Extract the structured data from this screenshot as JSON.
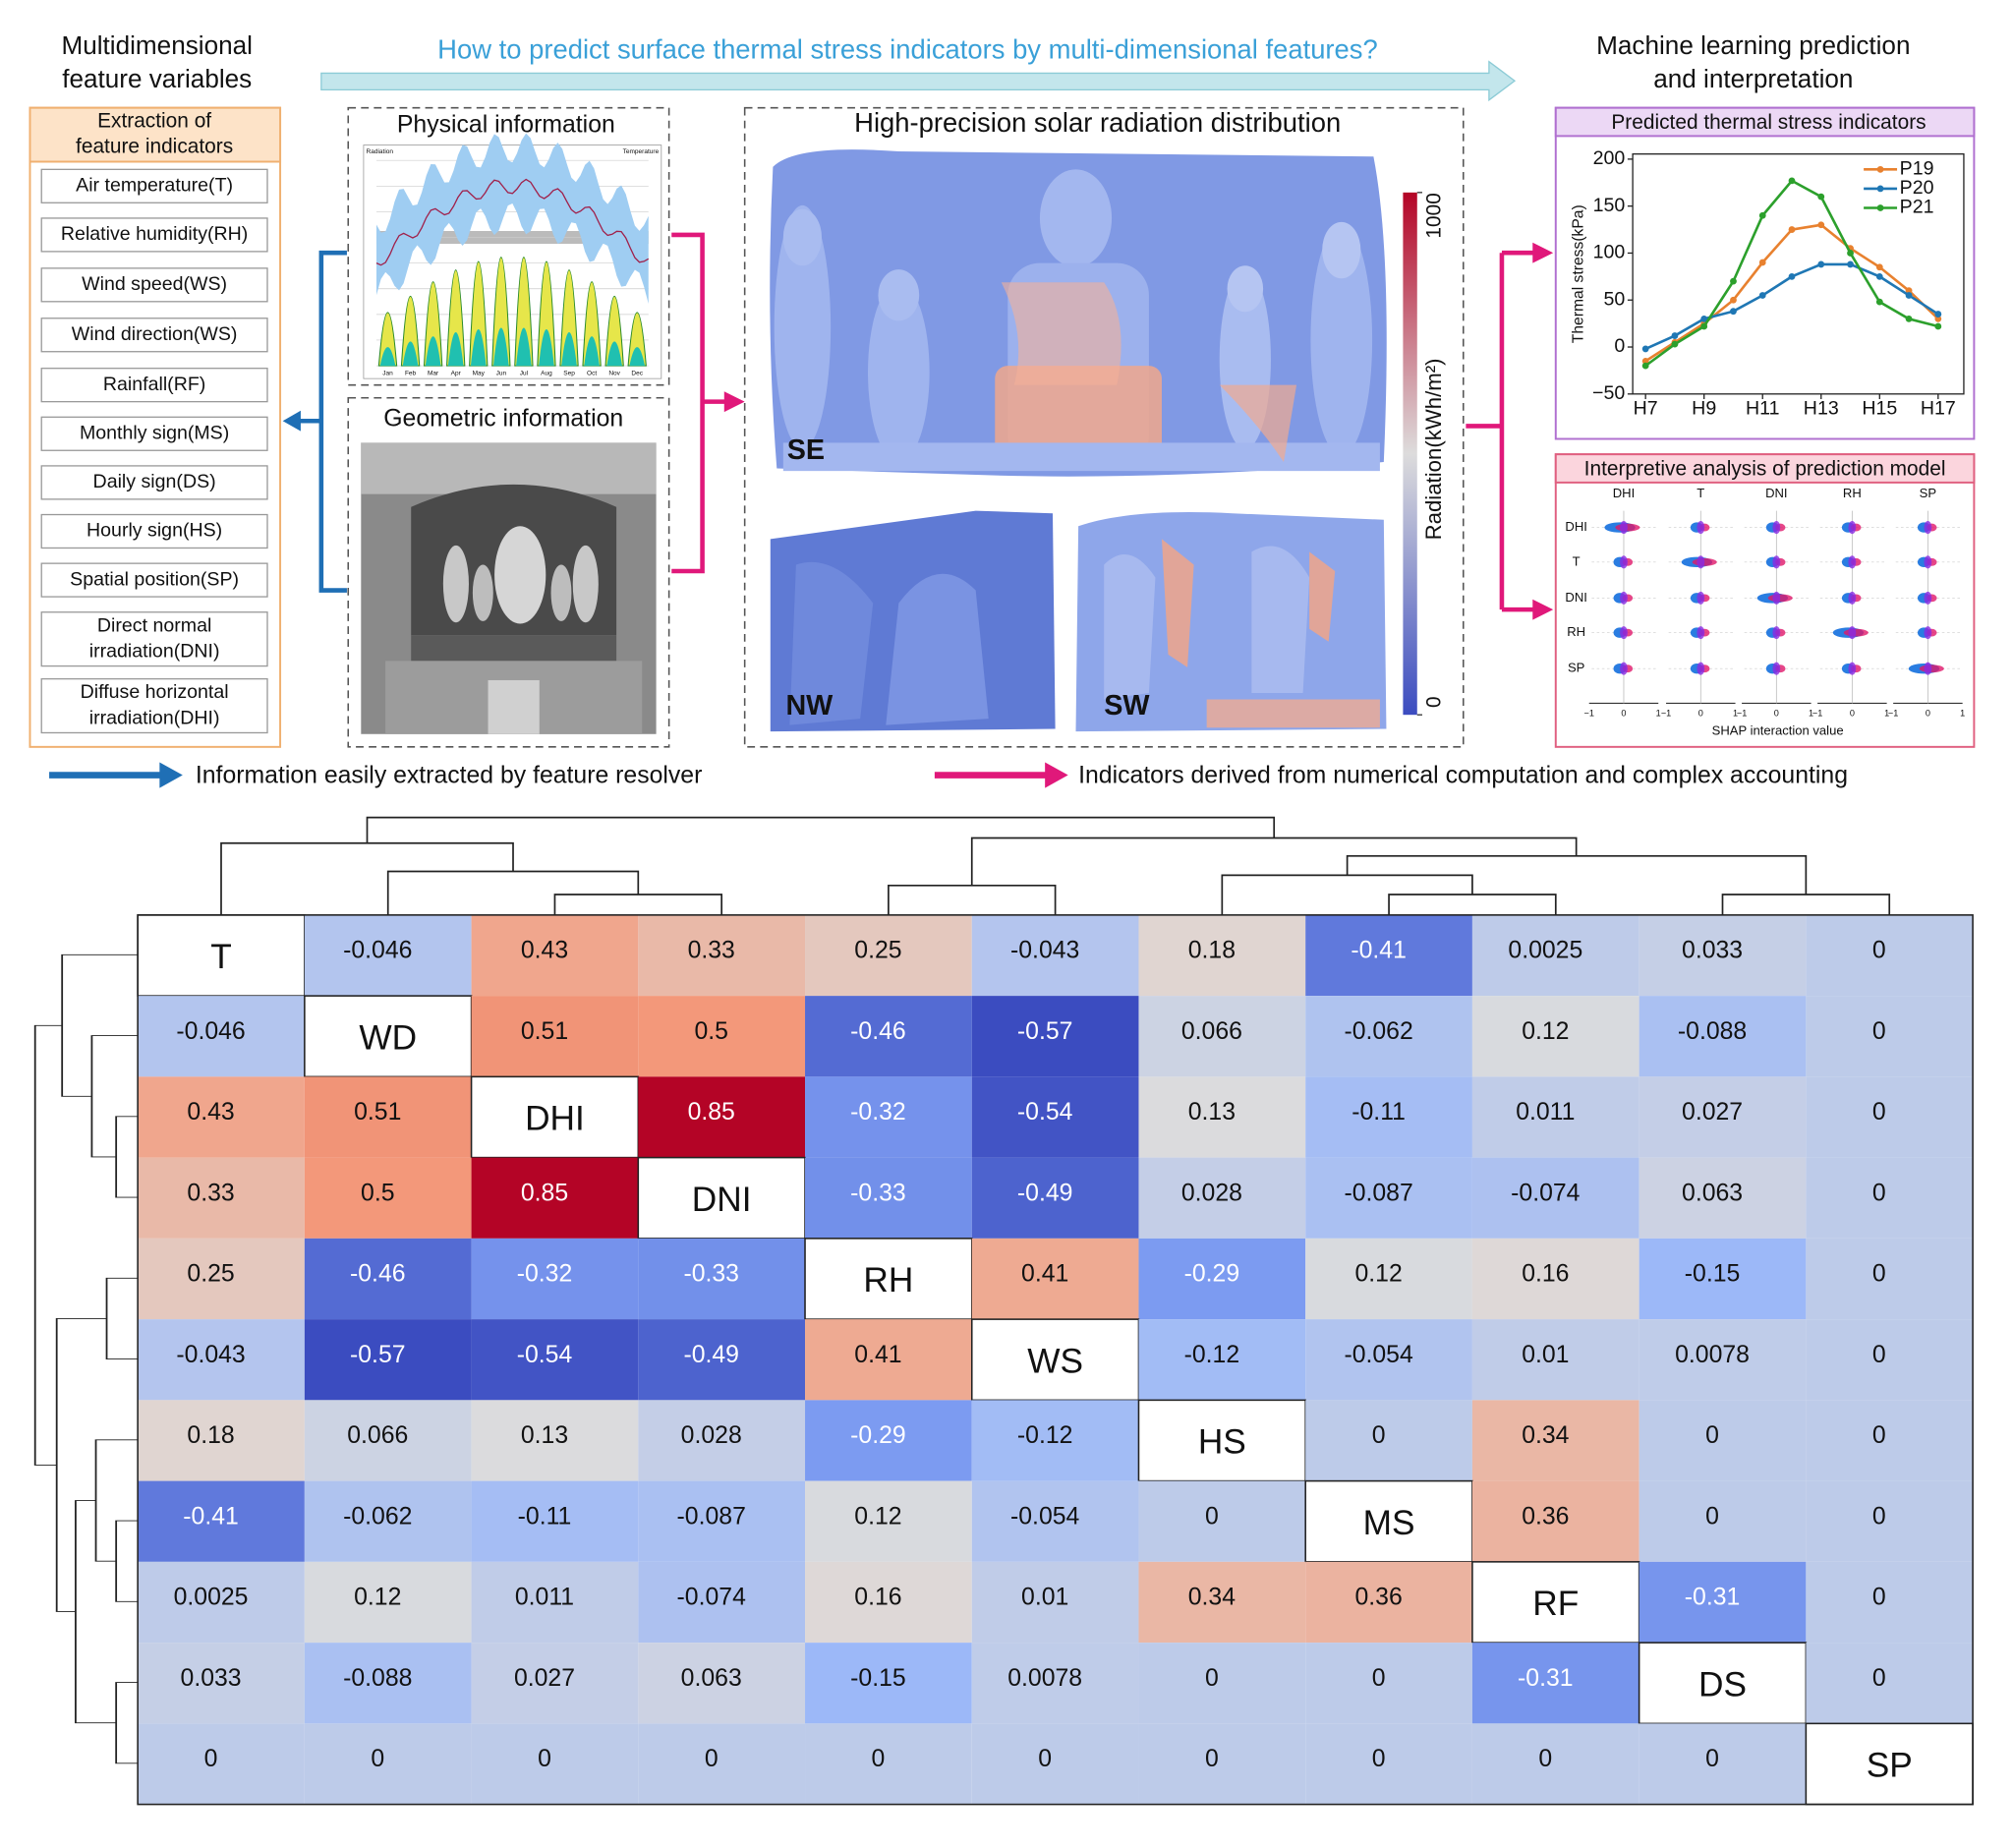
{
  "header": {
    "left_title": [
      "Multidimensional",
      "feature variables"
    ],
    "question": "How to predict surface thermal stress indicators by multi-dimensional features?",
    "right_title": [
      "Machine learning prediction",
      "and interpretation"
    ]
  },
  "features": {
    "title": [
      "Extraction of",
      "feature indicators"
    ],
    "items": [
      [
        "Air temperature(T)"
      ],
      [
        "Relative humidity(RH)"
      ],
      [
        "Wind speed(WS)"
      ],
      [
        "Wind direction(WS)"
      ],
      [
        "Rainfall(RF)"
      ],
      [
        "Monthly sign(MS)"
      ],
      [
        "Daily sign(DS)"
      ],
      [
        "Hourly sign(HS)"
      ],
      [
        "Spatial position(SP)"
      ],
      [
        "Direct normal",
        "irradiation(DNI)"
      ],
      [
        "Diffuse horizontal",
        "irradiation(DHI)"
      ]
    ]
  },
  "physical": {
    "title": "Physical information",
    "left_label": "Radiation",
    "right_label": "Temperature",
    "months": [
      "Jan",
      "Feb",
      "Mar",
      "Apr",
      "May",
      "Jun",
      "Jul",
      "Aug",
      "Sep",
      "Oct",
      "Nov",
      "Dec"
    ]
  },
  "geometric": {
    "title": "Geometric information"
  },
  "solar": {
    "title": "High-precision solar radiation distribution",
    "colorbar_label": "Radiation(kWh/m²)",
    "clim": [
      0,
      1000
    ],
    "ticks": [
      0,
      1000
    ],
    "views": [
      "SE",
      "NW",
      "SW"
    ]
  },
  "prediction": {
    "title": "Predicted thermal stress indicators"
  },
  "interpretation": {
    "title": "Interpretive analysis of prediction model",
    "features": [
      "DHI",
      "T",
      "DNI",
      "RH",
      "SP"
    ],
    "ticks": [
      "−1",
      "0",
      "1"
    ],
    "xlabel": "SHAP interaction value"
  },
  "legend": {
    "blue": "Information easily extracted by feature resolver",
    "pink": "Indicators derived from numerical computation and complex accounting"
  },
  "chart_data": [
    {
      "type": "line",
      "ylabel": "Thermal stress(kPa)",
      "categories": [
        "H7",
        null,
        "H9",
        null,
        "H11",
        null,
        "H13",
        null,
        "H15",
        null,
        "H17"
      ],
      "ylim": [
        -50,
        200
      ],
      "yticks": [
        {
          "value": -50,
          "label": "−50"
        },
        0,
        50,
        100,
        150,
        200
      ],
      "legend": "upper right",
      "series": [
        {
          "name": "P19",
          "color": "#e8812f",
          "values": [
            -15,
            5,
            25,
            50,
            90,
            125,
            130,
            105,
            85,
            60,
            30
          ]
        },
        {
          "name": "P20",
          "color": "#1f77b4",
          "values": [
            -2,
            12,
            30,
            38,
            55,
            75,
            88,
            88,
            75,
            55,
            35
          ]
        },
        {
          "name": "P21",
          "color": "#2ca02c",
          "values": [
            -20,
            3,
            22,
            70,
            140,
            177,
            160,
            100,
            48,
            30,
            22
          ]
        }
      ]
    },
    {
      "type": "heatmap",
      "categories": [
        "T",
        "WD",
        "DHI",
        "DNI",
        "RH",
        "WS",
        "HS",
        "MS",
        "RF",
        "DS",
        "SP"
      ],
      "values": [
        [
          null,
          -0.046,
          0.43,
          0.33,
          0.25,
          -0.043,
          0.18,
          -0.41,
          0.0025,
          0.033,
          0
        ],
        [
          -0.046,
          null,
          0.51,
          0.5,
          -0.46,
          -0.57,
          0.066,
          -0.062,
          0.12,
          -0.088,
          0
        ],
        [
          0.43,
          0.51,
          null,
          0.85,
          -0.32,
          -0.54,
          0.13,
          -0.11,
          0.011,
          0.027,
          0
        ],
        [
          0.33,
          0.5,
          0.85,
          null,
          -0.33,
          -0.49,
          0.028,
          -0.087,
          -0.074,
          0.063,
          0
        ],
        [
          0.25,
          -0.46,
          -0.32,
          -0.33,
          null,
          0.41,
          -0.29,
          0.12,
          0.16,
          -0.15,
          0
        ],
        [
          -0.043,
          -0.57,
          -0.54,
          -0.49,
          0.41,
          null,
          -0.12,
          -0.054,
          0.01,
          0.0078,
          0
        ],
        [
          0.18,
          0.066,
          0.13,
          0.028,
          -0.29,
          -0.12,
          null,
          0,
          0.34,
          0,
          0
        ],
        [
          -0.41,
          -0.062,
          -0.11,
          -0.087,
          0.12,
          -0.054,
          0,
          null,
          0.36,
          0,
          0
        ],
        [
          0.0025,
          0.12,
          0.011,
          -0.074,
          0.16,
          0.01,
          0.34,
          0.36,
          null,
          -0.31,
          0
        ],
        [
          0.033,
          -0.088,
          0.027,
          0.063,
          -0.15,
          0.0078,
          0,
          0,
          -0.31,
          null,
          0
        ],
        [
          0,
          0,
          0,
          0,
          0,
          0,
          0,
          0,
          0,
          0,
          null
        ]
      ]
    }
  ]
}
